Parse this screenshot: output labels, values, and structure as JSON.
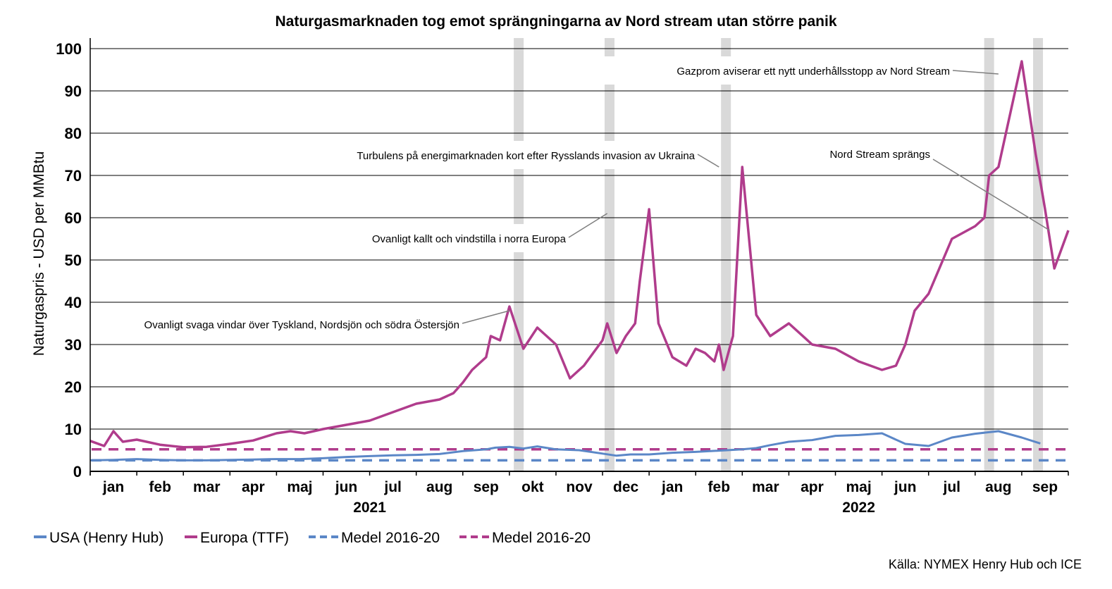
{
  "chart_data": {
    "type": "line",
    "title": "Naturgasmarknaden tog emot sprängningarna av Nord stream utan större panik",
    "ylabel": "Naturgaspris - USD per MMBtu",
    "ylim": [
      0,
      100
    ],
    "yticks": [
      "0",
      "10",
      "20",
      "30",
      "40",
      "50",
      "60",
      "70",
      "80",
      "90",
      "100"
    ],
    "grid": true,
    "months": [
      "jan",
      "feb",
      "mar",
      "apr",
      "maj",
      "jun",
      "jul",
      "aug",
      "sep",
      "okt",
      "nov",
      "dec",
      "jan",
      "feb",
      "mar",
      "apr",
      "maj",
      "jun",
      "jul",
      "aug",
      "sep"
    ],
    "years": [
      "2021",
      "2022"
    ],
    "colors": {
      "usa": "#5b87c7",
      "europa": "#b03c8c",
      "band": "#d9d9d9",
      "grid": "#000000"
    },
    "series": [
      {
        "name": "USA (Henry Hub)",
        "x": [
          0,
          0.5,
          1,
          1.5,
          2,
          2.5,
          3,
          3.5,
          4,
          4.5,
          5,
          5.5,
          6,
          6.5,
          7,
          7.5,
          8,
          8.5,
          8.7,
          9,
          9.3,
          9.6,
          10,
          10.5,
          11,
          11.3,
          11.6,
          12,
          12.5,
          13,
          13.5,
          14,
          14.3,
          14.6,
          15,
          15.5,
          16,
          16.5,
          17,
          17.5,
          18,
          18.5,
          19,
          19.5,
          20,
          20.4
        ],
        "values": [
          2.6,
          2.7,
          2.9,
          2.7,
          2.6,
          2.6,
          2.7,
          2.8,
          2.9,
          2.9,
          3.1,
          3.4,
          3.6,
          3.8,
          3.9,
          4.1,
          4.8,
          5.2,
          5.6,
          5.8,
          5.4,
          5.9,
          5.2,
          5.0,
          4.2,
          3.7,
          4.0,
          4.0,
          4.4,
          4.6,
          4.9,
          5.2,
          5.5,
          6.2,
          7.0,
          7.4,
          8.4,
          8.6,
          9.0,
          6.5,
          6.0,
          8.0,
          8.9,
          9.5,
          8.0,
          6.6
        ]
      },
      {
        "name": "Europa (TTF)",
        "x": [
          0,
          0.3,
          0.5,
          0.7,
          1,
          1.5,
          2,
          2.5,
          3,
          3.5,
          4,
          4.3,
          4.6,
          5,
          5.5,
          6,
          6.5,
          7,
          7.5,
          7.8,
          8,
          8.2,
          8.5,
          8.6,
          8.8,
          9,
          9.3,
          9.6,
          10,
          10.3,
          10.6,
          11,
          11.1,
          11.3,
          11.5,
          11.7,
          11.8,
          12,
          12.2,
          12.5,
          12.8,
          13,
          13.2,
          13.4,
          13.5,
          13.6,
          13.8,
          14,
          14.3,
          14.6,
          15,
          15.5,
          16,
          16.5,
          17,
          17.3,
          17.5,
          17.7,
          18,
          18.5,
          19,
          19.2,
          19.3,
          19.5,
          20,
          20.3,
          20.5,
          20.7,
          21
        ],
        "values": [
          7.2,
          6.0,
          9.5,
          7.0,
          7.5,
          6.3,
          5.7,
          5.8,
          6.5,
          7.3,
          9.0,
          9.5,
          9.0,
          10.0,
          11.0,
          12.0,
          14.0,
          16.0,
          17.0,
          18.5,
          21.0,
          24.0,
          27.0,
          32.0,
          31.0,
          39.0,
          29.0,
          34.0,
          30.0,
          22.0,
          25.0,
          31.0,
          35.0,
          28.0,
          32.0,
          35.0,
          45.0,
          62.0,
          35.0,
          27.0,
          25.0,
          29.0,
          28.0,
          26.0,
          30.0,
          24.0,
          32.0,
          72.0,
          37.0,
          32.0,
          35.0,
          30.0,
          29.0,
          26.0,
          24.0,
          25.0,
          30.0,
          38.0,
          42.0,
          55.0,
          58.0,
          60.0,
          70.0,
          72.0,
          97.0,
          75.0,
          62.0,
          48.0,
          57.0
        ]
      }
    ],
    "references": [
      {
        "name": "Medel 2016-20",
        "series": "usa",
        "value": 2.6
      },
      {
        "name": "Medel 2016-20",
        "series": "europa",
        "value": 5.2
      }
    ],
    "bands_month_position": [
      9.2,
      11.15,
      13.65,
      19.3,
      20.35
    ],
    "annotations": [
      {
        "text": "Ovanligt svaga vindar över Tyskland, Nordsjön och södra Östersjön",
        "x": 9.0,
        "y": 38.0
      },
      {
        "text": "Ovanligt kallt och vindstilla i norra Europa",
        "x": 11.1,
        "y": 61.0
      },
      {
        "text": "Turbulens på energimarknaden kort efter Rysslands invasion av Ukraina",
        "x": 13.5,
        "y": 72.0
      },
      {
        "text": "Gazprom aviserar ett nytt underhållsstopp av Nord Stream",
        "x": 19.5,
        "y": 94.0
      },
      {
        "text": "Nord Stream sprängs",
        "x": 20.6,
        "y": 57.0
      }
    ]
  },
  "legend": {
    "items": [
      "USA (Henry Hub)",
      "Europa (TTF)",
      "Medel 2016-20",
      "Medel 2016-20"
    ]
  },
  "source": "Källa: NYMEX Henry Hub och ICE"
}
